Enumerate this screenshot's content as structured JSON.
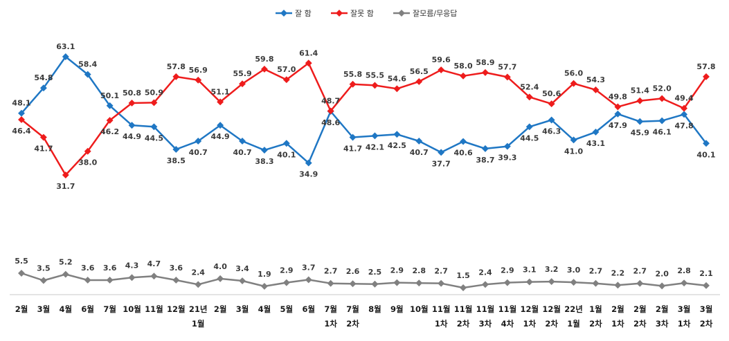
{
  "chart_data": {
    "type": "line",
    "legend_position": "top-center",
    "grid": false,
    "categories": [
      [
        "2월"
      ],
      [
        "3월"
      ],
      [
        "4월"
      ],
      [
        "6월"
      ],
      [
        "7월"
      ],
      [
        "10월"
      ],
      [
        "11월"
      ],
      [
        "12월"
      ],
      [
        "21년",
        "1월"
      ],
      [
        "2월"
      ],
      [
        "3월"
      ],
      [
        "4월"
      ],
      [
        "5월"
      ],
      [
        "6월"
      ],
      [
        "7월",
        "1차"
      ],
      [
        "7월",
        "2차"
      ],
      [
        "8월"
      ],
      [
        "9월"
      ],
      [
        "10월"
      ],
      [
        "11월",
        "1차"
      ],
      [
        "11월",
        "2차"
      ],
      [
        "11월",
        "3차"
      ],
      [
        "11월",
        "4차"
      ],
      [
        "12월",
        "1차"
      ],
      [
        "12월",
        "2차"
      ],
      [
        "22년",
        "1월"
      ],
      [
        "1월",
        "2차"
      ],
      [
        "2월",
        "1차"
      ],
      [
        "2월",
        "2차"
      ],
      [
        "2월",
        "3차"
      ],
      [
        "3월",
        "1차"
      ],
      [
        "3월",
        "2차"
      ]
    ],
    "series": [
      {
        "name": "잘 함",
        "color": "#1f77c4",
        "values": [
          48.1,
          54.8,
          63.1,
          58.4,
          50.1,
          44.9,
          44.5,
          38.5,
          40.7,
          44.9,
          40.7,
          38.3,
          40.1,
          34.9,
          48.6,
          41.7,
          42.1,
          42.5,
          40.7,
          37.7,
          40.6,
          38.7,
          39.3,
          44.5,
          46.3,
          41.0,
          43.1,
          47.9,
          45.9,
          46.1,
          47.8,
          40.1
        ]
      },
      {
        "name": "잘못 함",
        "color": "#ee1c1c",
        "values": [
          46.4,
          41.7,
          31.7,
          38.0,
          46.2,
          50.8,
          50.9,
          57.8,
          56.9,
          51.1,
          55.9,
          59.8,
          57.0,
          61.4,
          48.7,
          55.8,
          55.5,
          54.6,
          56.5,
          59.6,
          58.0,
          58.9,
          57.7,
          52.4,
          50.6,
          56.0,
          54.3,
          49.8,
          51.4,
          52.0,
          49.4,
          57.8
        ]
      },
      {
        "name": "잘모름/무응답",
        "color": "#808080",
        "values": [
          5.5,
          3.5,
          5.2,
          3.6,
          3.6,
          4.3,
          4.7,
          3.6,
          2.4,
          4.0,
          3.4,
          1.9,
          2.9,
          3.7,
          2.7,
          2.6,
          2.5,
          2.9,
          2.8,
          2.7,
          1.5,
          2.4,
          2.9,
          3.1,
          3.2,
          3.0,
          2.7,
          2.2,
          2.7,
          2.0,
          2.8,
          2.1
        ]
      }
    ]
  }
}
